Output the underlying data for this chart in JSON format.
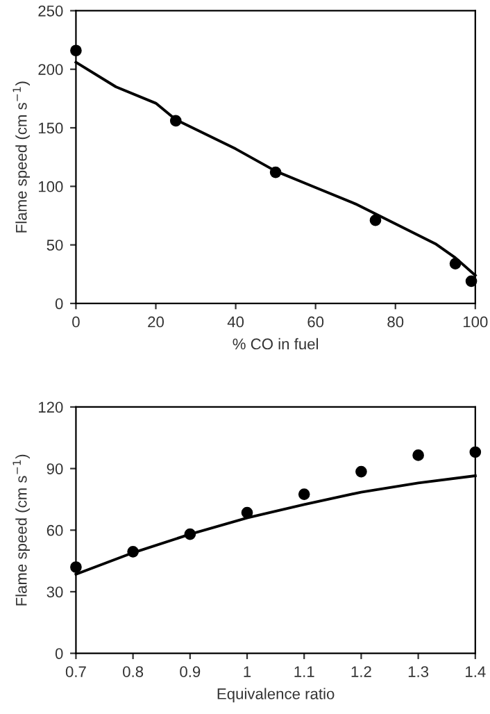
{
  "chart_data": [
    {
      "type": "scatter",
      "xlabel": "% CO in fuel",
      "ylabel": "Flame speed (cm s$^{−1}$)",
      "xlim": [
        0,
        100
      ],
      "ylim": [
        0,
        250
      ],
      "xticks": [
        0,
        20,
        40,
        60,
        80,
        100
      ],
      "yticks": [
        0,
        50,
        100,
        150,
        200,
        250
      ],
      "grid": false,
      "legend": false,
      "series": [
        {
          "color": "#000000",
          "marker": "circle",
          "x": [
            0,
            25,
            50,
            75,
            95,
            99
          ],
          "values": [
            216,
            156,
            112,
            71,
            34,
            19
          ]
        },
        {
          "type": "line",
          "color": "#000000",
          "marker": "none",
          "line_style": "solid",
          "x": [
            0,
            10,
            20,
            25,
            40,
            50,
            60,
            70,
            80,
            90,
            95,
            100
          ],
          "values": [
            206,
            185,
            171,
            157,
            132,
            113,
            99,
            85,
            68,
            51,
            39,
            24
          ]
        }
      ]
    },
    {
      "type": "scatter",
      "xlabel": "Equivalence ratio",
      "ylabel": "Flame speed (cm s$^{−1}$)",
      "xlim": [
        0.7,
        1.4
      ],
      "ylim": [
        0,
        120
      ],
      "xticks": [
        0.7,
        0.8,
        0.9,
        1,
        1.1,
        1.2,
        1.3,
        1.4
      ],
      "yticks": [
        0,
        30,
        60,
        90,
        120
      ],
      "grid": false,
      "legend": false,
      "series": [
        {
          "color": "#000000",
          "marker": "circle",
          "x": [
            0.7,
            0.8,
            0.9,
            1.0,
            1.1,
            1.2,
            1.3,
            1.4
          ],
          "values": [
            42,
            49.5,
            58,
            68.5,
            77.5,
            88.5,
            96.5,
            98
          ]
        },
        {
          "type": "line",
          "color": "#000000",
          "marker": "none",
          "line_style": "solid",
          "x": [
            0.7,
            0.8,
            0.9,
            1.0,
            1.1,
            1.2,
            1.3,
            1.4
          ],
          "values": [
            38.5,
            49,
            58,
            66,
            72.5,
            78.5,
            83,
            86.5
          ]
        }
      ]
    }
  ]
}
